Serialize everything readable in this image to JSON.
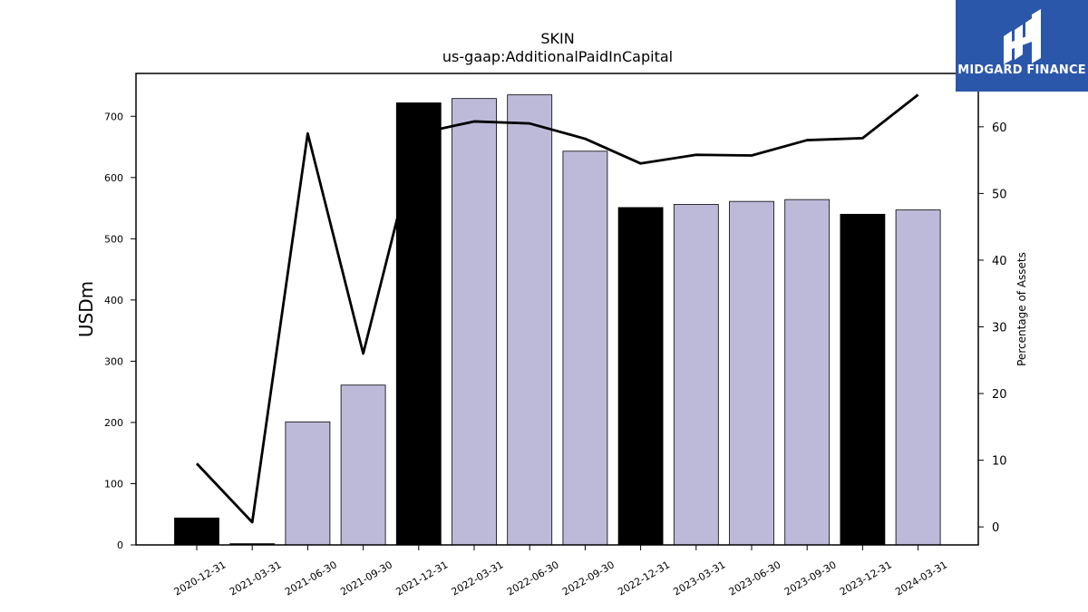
{
  "chart_data": {
    "type": "bar",
    "title": "SKIN",
    "subtitle": "us-gaap:AdditionalPaidInCapital",
    "ylabel": "USDm",
    "y2label": "Percentage of Assets",
    "ylim": [
      0,
      770
    ],
    "y2lim": [
      -2.7,
      68
    ],
    "yticks": [
      0,
      100,
      200,
      300,
      400,
      500,
      600,
      700
    ],
    "y2ticks": [
      0,
      10,
      20,
      30,
      40,
      50,
      60
    ],
    "categories": [
      "2020-12-31",
      "2021-03-31",
      "2021-06-30",
      "2021-09-30",
      "2021-12-31",
      "2022-03-31",
      "2022-06-30",
      "2022-09-30",
      "2022-12-31",
      "2023-03-31",
      "2023-06-30",
      "2023-09-30",
      "2023-12-31",
      "2024-03-31"
    ],
    "series": [
      {
        "type": "bar",
        "values": [
          44,
          2,
          201,
          261,
          722,
          729,
          735,
          643,
          551,
          556,
          561,
          564,
          540,
          547
        ],
        "colors": [
          "#000000",
          "#000000",
          "#bdbad9",
          "#bdbad9",
          "#000000",
          "#bdbad9",
          "#bdbad9",
          "#bdbad9",
          "#000000",
          "#bdbad9",
          "#bdbad9",
          "#bdbad9",
          "#000000",
          "#bdbad9"
        ]
      },
      {
        "type": "line",
        "axis": "right",
        "color": "#000000",
        "values": [
          9.5,
          0.7,
          59.0,
          26.0,
          59.0,
          60.8,
          60.5,
          58.2,
          54.5,
          55.8,
          55.7,
          58.0,
          58.3,
          64.8
        ]
      }
    ],
    "grid": false
  },
  "logo": {
    "text": "MIDGARD FINANCE",
    "background": "#2b57ab"
  }
}
